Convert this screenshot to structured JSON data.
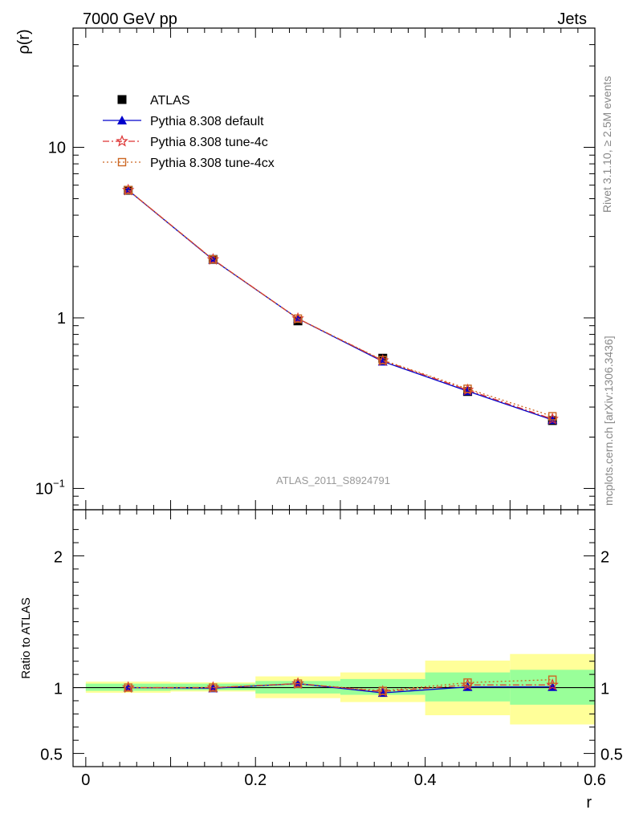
{
  "header": {
    "left_title": "7000 GeV pp",
    "right_title": "Jets"
  },
  "side_labels": {
    "rivet": "Rivet 3.1.10, ≥ 2.5M events",
    "mcplots": "mcplots.cern.ch [arXiv:1306.3436]"
  },
  "watermark": "ATLAS_2011_S8924791",
  "chart_data": [
    {
      "type": "line",
      "panel": "main",
      "ylabel": "ρ(r)",
      "yscale": "log",
      "ylim": [
        0.075,
        50
      ],
      "xlim": [
        -0.015,
        0.6
      ],
      "yticks": [
        {
          "value": 0.1,
          "base": "10",
          "exp": "−1"
        },
        {
          "value": 1,
          "label": "1"
        },
        {
          "value": 10,
          "label": "10"
        }
      ],
      "x": [
        0.05,
        0.15,
        0.25,
        0.35,
        0.45,
        0.55
      ],
      "series": [
        {
          "name": "ATLAS",
          "values": [
            5.6,
            2.2,
            0.96,
            0.58,
            0.37,
            0.25
          ],
          "color": "#000000",
          "marker": "square"
        },
        {
          "name": "Pythia 8.308 default",
          "values": [
            5.6,
            2.19,
            0.99,
            0.555,
            0.372,
            0.252
          ],
          "color": "#0000cc",
          "marker": "triangle"
        },
        {
          "name": "Pythia 8.308 tune-4c",
          "values": [
            5.61,
            2.2,
            0.99,
            0.562,
            0.378,
            0.255
          ],
          "color": "#dd3333",
          "marker": "star"
        },
        {
          "name": "Pythia 8.308 tune-4cx",
          "values": [
            5.62,
            2.2,
            0.99,
            0.565,
            0.384,
            0.265
          ],
          "color": "#cc6622",
          "marker": "open-square"
        }
      ],
      "legend_position": "top-left"
    },
    {
      "type": "line",
      "panel": "ratio",
      "ylabel": "Ratio to ATLAS",
      "xlabel": "r",
      "ylim": [
        0.4,
        2.35
      ],
      "xlim": [
        -0.015,
        0.6
      ],
      "yticks": [
        {
          "value": 0.5,
          "label": "0.5"
        },
        {
          "value": 1,
          "label": "1"
        },
        {
          "value": 2,
          "label": "2"
        }
      ],
      "xticks": [
        {
          "value": 0,
          "label": "0"
        },
        {
          "value": 0.2,
          "label": "0.2"
        },
        {
          "value": 0.4,
          "label": "0.4"
        },
        {
          "value": 0.6,
          "label": "0.6"
        }
      ],
      "x": [
        0.05,
        0.15,
        0.25,
        0.35,
        0.45,
        0.55
      ],
      "bands": {
        "bin_edges": [
          0.0,
          0.1,
          0.2,
          0.3,
          0.4,
          0.5,
          0.6
        ],
        "yellow_low": [
          0.96,
          0.97,
          0.92,
          0.89,
          0.79,
          0.72
        ],
        "yellow_high": [
          1.045,
          1.04,
          1.085,
          1.115,
          1.205,
          1.255
        ],
        "green_low": [
          0.975,
          0.98,
          0.955,
          0.945,
          0.895,
          0.87
        ],
        "green_high": [
          1.03,
          1.03,
          1.05,
          1.065,
          1.115,
          1.135
        ],
        "yellow_color": "#ffff99",
        "green_color": "#99ff99"
      },
      "series": [
        {
          "name": "Pythia 8.308 default",
          "values": [
            1.0,
            0.995,
            1.03,
            0.96,
            1.005,
            1.005
          ],
          "color": "#0000cc",
          "marker": "triangle"
        },
        {
          "name": "Pythia 8.308 tune-4c",
          "values": [
            1.0,
            1.0,
            1.03,
            0.97,
            1.02,
            1.02
          ],
          "color": "#dd3333",
          "marker": "star"
        },
        {
          "name": "Pythia 8.308 tune-4cx",
          "values": [
            1.0,
            1.0,
            1.03,
            0.975,
            1.038,
            1.06
          ],
          "color": "#cc6622",
          "marker": "open-square"
        }
      ],
      "reference_line": 1
    }
  ]
}
